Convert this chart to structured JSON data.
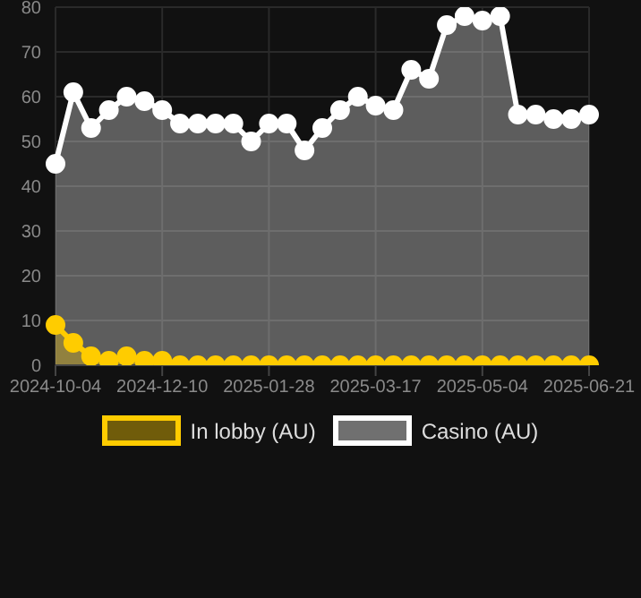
{
  "chart_data": {
    "type": "area",
    "categories": [
      "2024-10-04",
      null,
      null,
      null,
      null,
      null,
      "2024-12-10",
      null,
      null,
      null,
      null,
      null,
      "2025-01-28",
      null,
      null,
      null,
      null,
      null,
      "2025-03-17",
      null,
      null,
      null,
      null,
      null,
      "2025-05-04",
      null,
      null,
      null,
      null,
      null,
      "2025-06-21"
    ],
    "series": [
      {
        "name": "In lobby (AU)",
        "color": "#ffcc00",
        "values": [
          9,
          5,
          2,
          1,
          2,
          1,
          1,
          0,
          0,
          0,
          0,
          0,
          0,
          0,
          0,
          0,
          0,
          0,
          0,
          0,
          0,
          0,
          0,
          0,
          0,
          0,
          0,
          0,
          0,
          0,
          0
        ]
      },
      {
        "name": "Casino (AU)",
        "color": "#ffffff",
        "values": [
          45,
          61,
          53,
          57,
          60,
          59,
          57,
          54,
          54,
          54,
          54,
          50,
          54,
          54,
          48,
          53,
          57,
          60,
          58,
          57,
          66,
          64,
          76,
          78,
          77,
          78,
          56,
          56,
          55,
          55,
          56
        ]
      }
    ],
    "ylim": [
      0,
      80
    ],
    "yticks": [
      0,
      10,
      20,
      30,
      40,
      50,
      60,
      70,
      80
    ],
    "grid": true,
    "legend": "bottom",
    "marker": "circle"
  }
}
